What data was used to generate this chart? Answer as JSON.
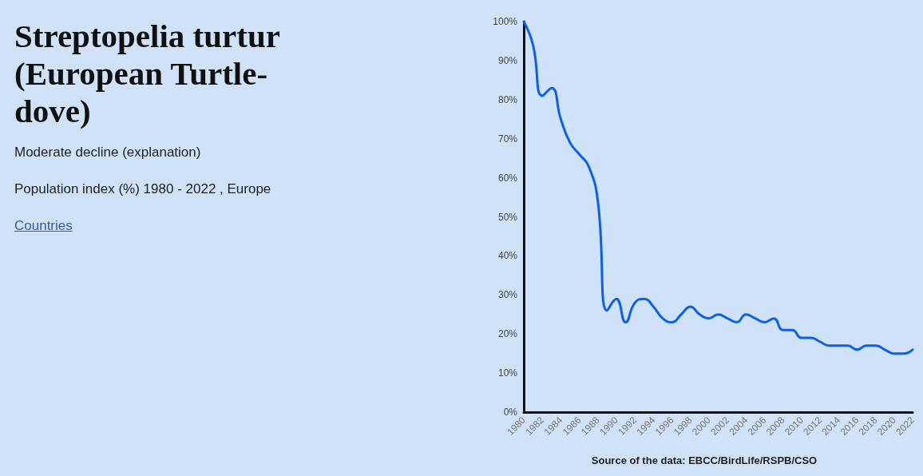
{
  "chart_data": {
    "type": "line",
    "title": "Streptopelia turtur (European Turtle-dove)",
    "annotations": [
      "Moderate decline (explanation)",
      "Population index (%) 1980 - 2022 , Europe",
      "Countries",
      "Source of the data: EBCC/BirdLife/RSPB/CSO"
    ],
    "x": [
      1980,
      1981,
      1982,
      1983,
      1984,
      1985,
      1986,
      1987,
      1988,
      1989,
      1990,
      1991,
      1992,
      1993,
      1994,
      1995,
      1996,
      1997,
      1998,
      1999,
      2000,
      2001,
      2002,
      2003,
      2004,
      2005,
      2006,
      2007,
      2008,
      2009,
      2010,
      2011,
      2012,
      2013,
      2014,
      2015,
      2016,
      2017,
      2018,
      2019,
      2020,
      2021,
      2022
    ],
    "series": [
      {
        "color": "#0a5ef0",
        "values": [
          100,
          94,
          81,
          83,
          75,
          69,
          66,
          63,
          54,
          26,
          29,
          23,
          28,
          29,
          27,
          24,
          23,
          25,
          27,
          25,
          24,
          25,
          24,
          23,
          25,
          24,
          23,
          24,
          21,
          21,
          19,
          19,
          18,
          17,
          17,
          17,
          16,
          17,
          17,
          16,
          15,
          15,
          16
        ]
      }
    ],
    "xlim": [
      1980,
      2022
    ],
    "xticks": [
      1980,
      1982,
      1984,
      1986,
      1988,
      1990,
      1992,
      1994,
      1996,
      1998,
      2000,
      2002,
      2004,
      2006,
      2008,
      2010,
      2012,
      2014,
      2016,
      2018,
      2020,
      2022
    ],
    "ylim": [
      0,
      100
    ],
    "yticks": [
      {
        "value": 0,
        "label": "0%"
      },
      {
        "value": 10,
        "label": "10%"
      },
      {
        "value": 20,
        "label": "20%"
      },
      {
        "value": 30,
        "label": "30%"
      },
      {
        "value": 40,
        "label": "40%"
      },
      {
        "value": 50,
        "label": "50%"
      },
      {
        "value": 60,
        "label": "60%"
      },
      {
        "value": 70,
        "label": "70%"
      },
      {
        "value": 80,
        "label": "80%"
      },
      {
        "value": 90,
        "label": "90%"
      },
      {
        "value": 100,
        "label": "100%"
      }
    ],
    "grid": false,
    "marker": "none",
    "line_style": "solid"
  }
}
